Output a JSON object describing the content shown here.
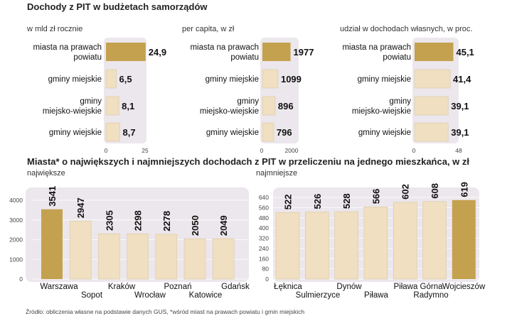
{
  "title": "Dochody z PIT w budżetach samorządów",
  "colors": {
    "highlight": "#c4a14e",
    "bar": "#f0dfc0",
    "bar_stroke": "#d9c8a6",
    "panel": "#ece7ec"
  },
  "chart_data": [
    {
      "type": "bar",
      "orientation": "horizontal",
      "title": "w mld zł rocznie",
      "categories": [
        {
          "line1": "miasta na prawach",
          "line2": "powiatu"
        },
        {
          "line1": "gminy miejskie",
          "line2": ""
        },
        {
          "line1": "gminy",
          "line2": "miejsko-wiejskie"
        },
        {
          "line1": "gminy wiejskie",
          "line2": ""
        }
      ],
      "values": [
        24.9,
        6.5,
        8.1,
        8.7
      ],
      "labels": [
        "24,9",
        "6,5",
        "8,1",
        "8,7"
      ],
      "xlim": [
        0,
        25
      ],
      "ticks": [
        "0",
        "25"
      ],
      "highlight": [
        0
      ]
    },
    {
      "type": "bar",
      "orientation": "horizontal",
      "title": "per capita, w zł",
      "categories": [
        {
          "line1": "miasta na prawach",
          "line2": "powiatu"
        },
        {
          "line1": "gminy miejskie",
          "line2": ""
        },
        {
          "line1": "gminy",
          "line2": "miejsko-wiejskie"
        },
        {
          "line1": "gminy wiejskie",
          "line2": ""
        }
      ],
      "values": [
        1977,
        1099,
        896,
        796
      ],
      "labels": [
        "1977",
        "1099",
        "896",
        "796"
      ],
      "xlim": [
        0,
        2000
      ],
      "ticks": [
        "0",
        "2000"
      ],
      "highlight": [
        0
      ]
    },
    {
      "type": "bar",
      "orientation": "horizontal",
      "title": "udział w dochodach własnych, w proc.",
      "categories": [
        {
          "line1": "miasta na prawach",
          "line2": "powiatu"
        },
        {
          "line1": "gminy miejskie",
          "line2": ""
        },
        {
          "line1": "gminy",
          "line2": "miejsko-wiejskie"
        },
        {
          "line1": "gminy wiejskie",
          "line2": ""
        }
      ],
      "values": [
        45.1,
        41.4,
        39.1,
        39.1
      ],
      "labels": [
        "45,1",
        "41,4",
        "39,1",
        "39,1"
      ],
      "xlim": [
        0,
        48
      ],
      "ticks": [
        "0",
        "48"
      ],
      "highlight": [
        0
      ]
    },
    {
      "type": "bar",
      "orientation": "vertical",
      "section_title": "Miasta* o największych i najmniejszych dochodach z PIT w przeliczeniu na jednego mieszkańca, w zł",
      "title": "największe",
      "categories": [
        "Warszawa",
        "Sopot",
        "Kraków",
        "Wrocław",
        "Poznań",
        "Katowice",
        "Gdańsk"
      ],
      "values": [
        3541,
        2947,
        2305,
        2298,
        2278,
        2050,
        2049
      ],
      "ylim": [
        0,
        4000
      ],
      "yticks": [
        0,
        1000,
        2000,
        3000,
        4000
      ],
      "highlight": [
        0
      ]
    },
    {
      "type": "bar",
      "orientation": "vertical",
      "title": "najmniejsze",
      "categories": [
        "Łęknica",
        "Sulmierzyce",
        "Dynów",
        "Piława",
        "Piława Górna",
        "Radymno",
        "Wojcieszów"
      ],
      "values": [
        522,
        526,
        528,
        566,
        602,
        608,
        619
      ],
      "ylim": [
        0,
        640
      ],
      "yticks": [
        0,
        80,
        160,
        240,
        320,
        400,
        480,
        560,
        640
      ],
      "highlight": [
        6
      ]
    }
  ],
  "footnote": "Źródło: obliczenia własne na podstawie danych GUS, *wśród miast na prawach powiatu i gmin miejskich"
}
